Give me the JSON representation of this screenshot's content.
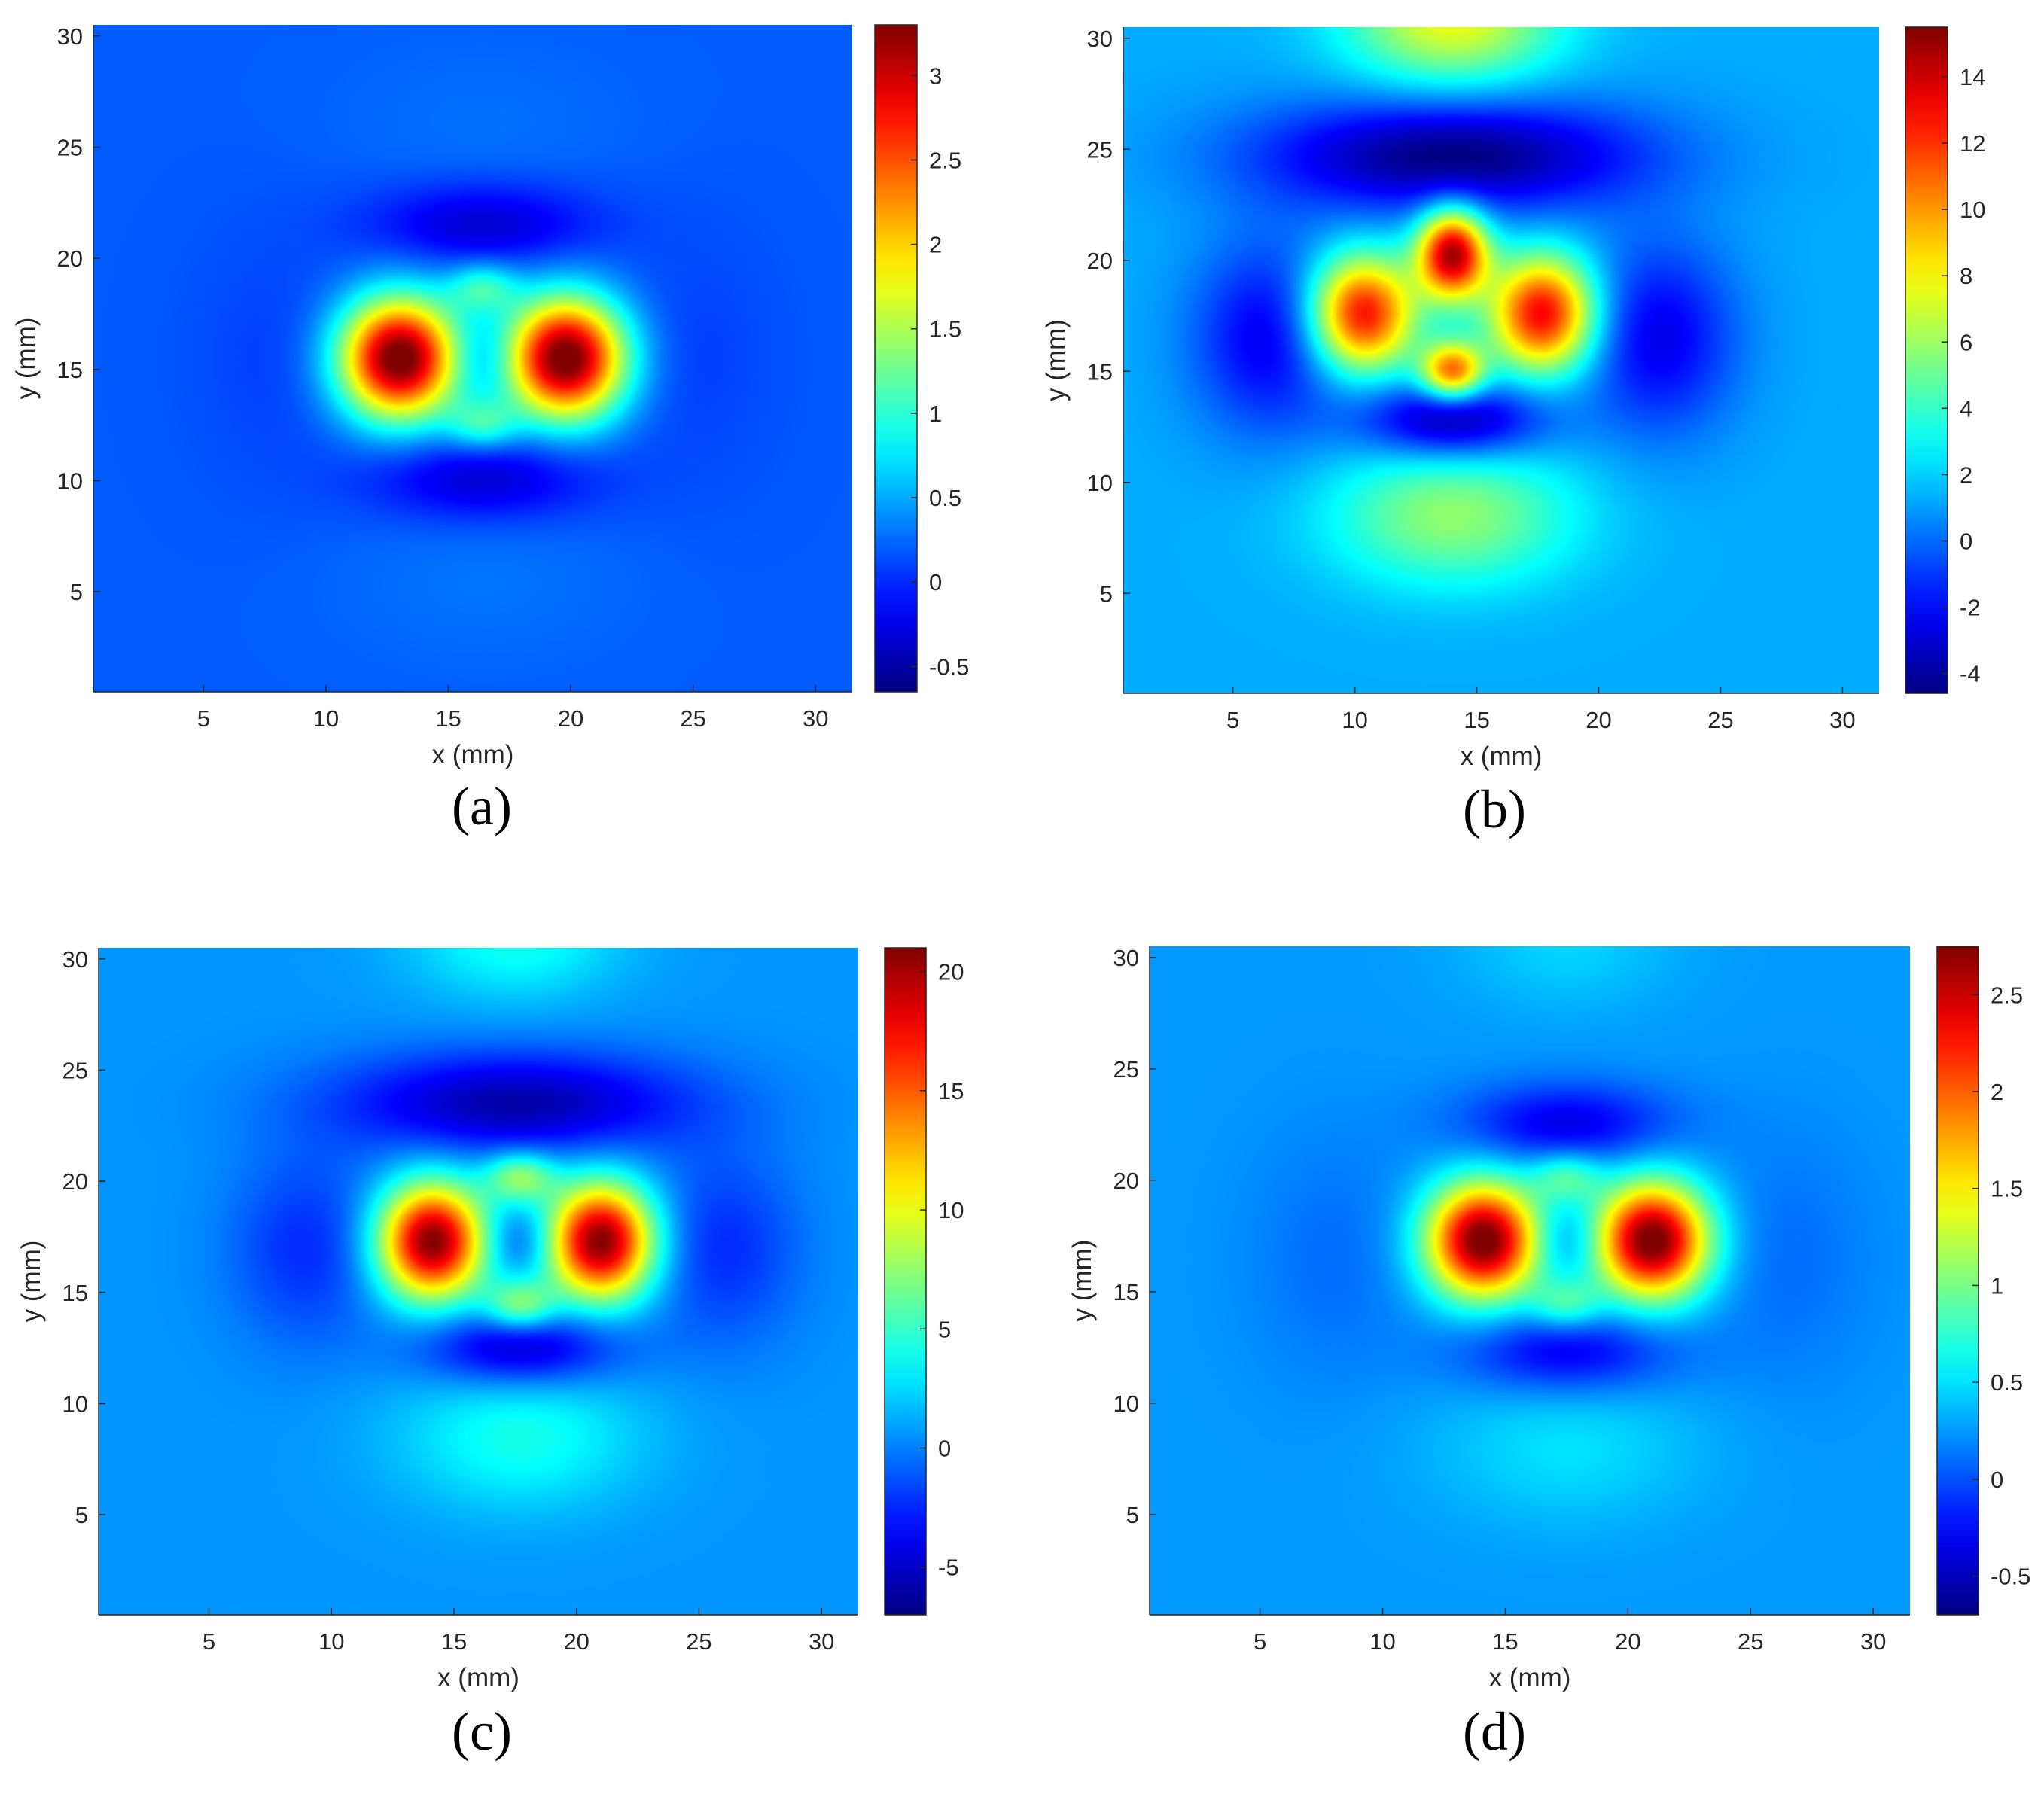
{
  "chart_data": [
    {
      "type": "heatmap",
      "panel": "(a)",
      "xlabel": "x (mm)",
      "ylabel": "y (mm)",
      "xlim": [
        0.5,
        31.5
      ],
      "ylim": [
        0.5,
        30.5
      ],
      "xticks": [
        5,
        10,
        15,
        20,
        25,
        30
      ],
      "yticks": [
        5,
        10,
        15,
        20,
        25,
        30
      ],
      "colormap": "jet",
      "colorbar": {
        "range": [
          -0.65,
          3.3
        ],
        "ticks": [
          "-0.5",
          "0",
          "0.5",
          "1",
          "1.5",
          "2",
          "2.5",
          "3"
        ]
      },
      "grid": false,
      "features": [
        {
          "kind": "peak",
          "x": 13.0,
          "y": 15.5,
          "value": 3.25,
          "sx": 1.7,
          "sy": 1.9
        },
        {
          "kind": "peak",
          "x": 19.8,
          "y": 15.5,
          "value": 3.25,
          "sx": 1.7,
          "sy": 1.9
        },
        {
          "kind": "peak",
          "x": 16.4,
          "y": 18.7,
          "value": 0.75,
          "sx": 1.0,
          "sy": 0.8
        },
        {
          "kind": "peak",
          "x": 16.4,
          "y": 12.5,
          "value": 0.75,
          "sx": 1.0,
          "sy": 0.8
        },
        {
          "kind": "trough",
          "x": 16.4,
          "y": 21.5,
          "value": -0.55,
          "sx": 3.2,
          "sy": 1.3
        },
        {
          "kind": "trough",
          "x": 16.4,
          "y": 10.1,
          "value": -0.55,
          "sx": 3.2,
          "sy": 1.3
        },
        {
          "kind": "trough",
          "x": 16.4,
          "y": 15.5,
          "value": -0.3,
          "sx": 1.0,
          "sy": 1.0
        },
        {
          "kind": "trough",
          "x": 8.0,
          "y": 15.5,
          "value": -0.12,
          "sx": 2.5,
          "sy": 4.0
        },
        {
          "kind": "trough",
          "x": 25.0,
          "y": 15.5,
          "value": -0.12,
          "sx": 2.5,
          "sy": 4.0
        },
        {
          "kind": "peak",
          "x": 16.4,
          "y": 5.5,
          "value": 0.1,
          "sx": 4.0,
          "sy": 2.5
        },
        {
          "kind": "peak",
          "x": 16.4,
          "y": 26.0,
          "value": 0.08,
          "sx": 4.0,
          "sy": 2.5
        }
      ],
      "background": 0.2
    },
    {
      "type": "heatmap",
      "panel": "(b)",
      "xlabel": "x (mm)",
      "ylabel": "y (mm)",
      "xlim": [
        0.5,
        31.5
      ],
      "ylim": [
        0.5,
        30.5
      ],
      "xticks": [
        5,
        10,
        15,
        20,
        25,
        30
      ],
      "yticks": [
        5,
        10,
        15,
        20,
        25,
        30
      ],
      "colormap": "jet",
      "colorbar": {
        "range": [
          -4.6,
          15.5
        ],
        "ticks": [
          "-4",
          "-2",
          "0",
          "2",
          "4",
          "6",
          "8",
          "10",
          "12",
          "14"
        ]
      },
      "grid": false,
      "features": [
        {
          "kind": "peak",
          "x": 10.3,
          "y": 17.6,
          "value": 12.0,
          "sx": 1.5,
          "sy": 1.8
        },
        {
          "kind": "peak",
          "x": 17.7,
          "y": 17.6,
          "value": 12.0,
          "sx": 1.5,
          "sy": 1.8
        },
        {
          "kind": "peak",
          "x": 14.0,
          "y": 20.3,
          "value": 13.5,
          "sx": 1.0,
          "sy": 1.4
        },
        {
          "kind": "peak",
          "x": 14.0,
          "y": 15.0,
          "value": 10.0,
          "sx": 0.9,
          "sy": 0.9
        },
        {
          "kind": "trough",
          "x": 14.0,
          "y": 24.7,
          "value": -6.0,
          "sx": 5.5,
          "sy": 1.8
        },
        {
          "kind": "trough",
          "x": 14.0,
          "y": 12.8,
          "value": -5.5,
          "sx": 2.6,
          "sy": 1.2
        },
        {
          "kind": "trough",
          "x": 6.5,
          "y": 16.5,
          "value": -3.8,
          "sx": 2.2,
          "sy": 3.0
        },
        {
          "kind": "trough",
          "x": 22.5,
          "y": 16.5,
          "value": -3.8,
          "sx": 2.2,
          "sy": 3.0
        },
        {
          "kind": "peak",
          "x": 14.0,
          "y": 8.5,
          "value": 4.5,
          "sx": 3.5,
          "sy": 2.2
        },
        {
          "kind": "peak",
          "x": 14.0,
          "y": 31.0,
          "value": 6.5,
          "sx": 3.0,
          "sy": 2.2
        }
      ],
      "background": 1.3
    },
    {
      "type": "heatmap",
      "panel": "(c)",
      "xlabel": "x (mm)",
      "ylabel": "y (mm)",
      "xlim": [
        0.5,
        31.5
      ],
      "ylim": [
        0.5,
        30.5
      ],
      "xticks": [
        5,
        10,
        15,
        20,
        25,
        30
      ],
      "yticks": [
        5,
        10,
        15,
        20,
        25,
        30
      ],
      "colormap": "jet",
      "colorbar": {
        "range": [
          -7,
          21
        ],
        "ticks": [
          "-5",
          "0",
          "5",
          "10",
          "15",
          "20"
        ]
      },
      "grid": false,
      "features": [
        {
          "kind": "peak",
          "x": 14.1,
          "y": 17.3,
          "value": 20.5,
          "sx": 1.5,
          "sy": 1.8
        },
        {
          "kind": "peak",
          "x": 21.0,
          "y": 17.3,
          "value": 20.5,
          "sx": 1.5,
          "sy": 1.8
        },
        {
          "kind": "peak",
          "x": 17.7,
          "y": 20.2,
          "value": 7.0,
          "sx": 1.0,
          "sy": 0.8
        },
        {
          "kind": "peak",
          "x": 17.7,
          "y": 14.4,
          "value": 7.0,
          "sx": 1.0,
          "sy": 0.8
        },
        {
          "kind": "trough",
          "x": 17.5,
          "y": 23.5,
          "value": -6.5,
          "sx": 5.0,
          "sy": 1.6
        },
        {
          "kind": "trough",
          "x": 17.7,
          "y": 12.5,
          "value": -6.0,
          "sx": 2.8,
          "sy": 1.2
        },
        {
          "kind": "trough",
          "x": 17.7,
          "y": 17.3,
          "value": -3.0,
          "sx": 1.0,
          "sy": 1.0
        },
        {
          "kind": "trough",
          "x": 9.0,
          "y": 17.0,
          "value": -3.0,
          "sx": 2.2,
          "sy": 3.0
        },
        {
          "kind": "trough",
          "x": 26.0,
          "y": 17.0,
          "value": -3.0,
          "sx": 2.2,
          "sy": 3.0
        },
        {
          "kind": "peak",
          "x": 17.7,
          "y": 8.5,
          "value": 3.5,
          "sx": 3.5,
          "sy": 2.3
        },
        {
          "kind": "peak",
          "x": 17.5,
          "y": 31.0,
          "value": 3.5,
          "sx": 3.0,
          "sy": 2.0
        }
      ],
      "background": 0.6
    },
    {
      "type": "heatmap",
      "panel": "(d)",
      "xlabel": "x (mm)",
      "ylabel": "y (mm)",
      "xlim": [
        0.5,
        31.5
      ],
      "ylim": [
        0.5,
        30.5
      ],
      "xticks": [
        5,
        10,
        15,
        20,
        25,
        30
      ],
      "yticks": [
        5,
        10,
        15,
        20,
        25,
        30
      ],
      "colormap": "jet",
      "colorbar": {
        "range": [
          -0.7,
          2.75
        ],
        "ticks": [
          "-0.5",
          "0",
          "0.5",
          "1",
          "1.5",
          "2",
          "2.5"
        ]
      },
      "grid": false,
      "features": [
        {
          "kind": "peak",
          "x": 14.1,
          "y": 17.3,
          "value": 2.6,
          "sx": 1.6,
          "sy": 1.8
        },
        {
          "kind": "peak",
          "x": 21.0,
          "y": 17.3,
          "value": 2.6,
          "sx": 1.6,
          "sy": 1.8
        },
        {
          "kind": "peak",
          "x": 17.5,
          "y": 20.2,
          "value": 0.6,
          "sx": 1.0,
          "sy": 0.8
        },
        {
          "kind": "peak",
          "x": 17.5,
          "y": 14.4,
          "value": 0.6,
          "sx": 1.0,
          "sy": 0.8
        },
        {
          "kind": "trough",
          "x": 17.5,
          "y": 22.5,
          "value": -0.6,
          "sx": 3.0,
          "sy": 1.3
        },
        {
          "kind": "trough",
          "x": 17.5,
          "y": 12.3,
          "value": -0.6,
          "sx": 3.0,
          "sy": 1.3
        },
        {
          "kind": "trough",
          "x": 17.5,
          "y": 17.3,
          "value": -0.3,
          "sx": 1.0,
          "sy": 1.0
        },
        {
          "kind": "trough",
          "x": 8.0,
          "y": 16.5,
          "value": -0.15,
          "sx": 2.5,
          "sy": 4.0
        },
        {
          "kind": "trough",
          "x": 26.5,
          "y": 16.5,
          "value": -0.15,
          "sx": 2.5,
          "sy": 4.0
        },
        {
          "kind": "peak",
          "x": 17.5,
          "y": 8.0,
          "value": 0.25,
          "sx": 3.8,
          "sy": 2.4
        },
        {
          "kind": "peak",
          "x": 17.5,
          "y": 30.5,
          "value": 0.2,
          "sx": 3.0,
          "sy": 2.0
        }
      ],
      "background": 0.25
    }
  ]
}
